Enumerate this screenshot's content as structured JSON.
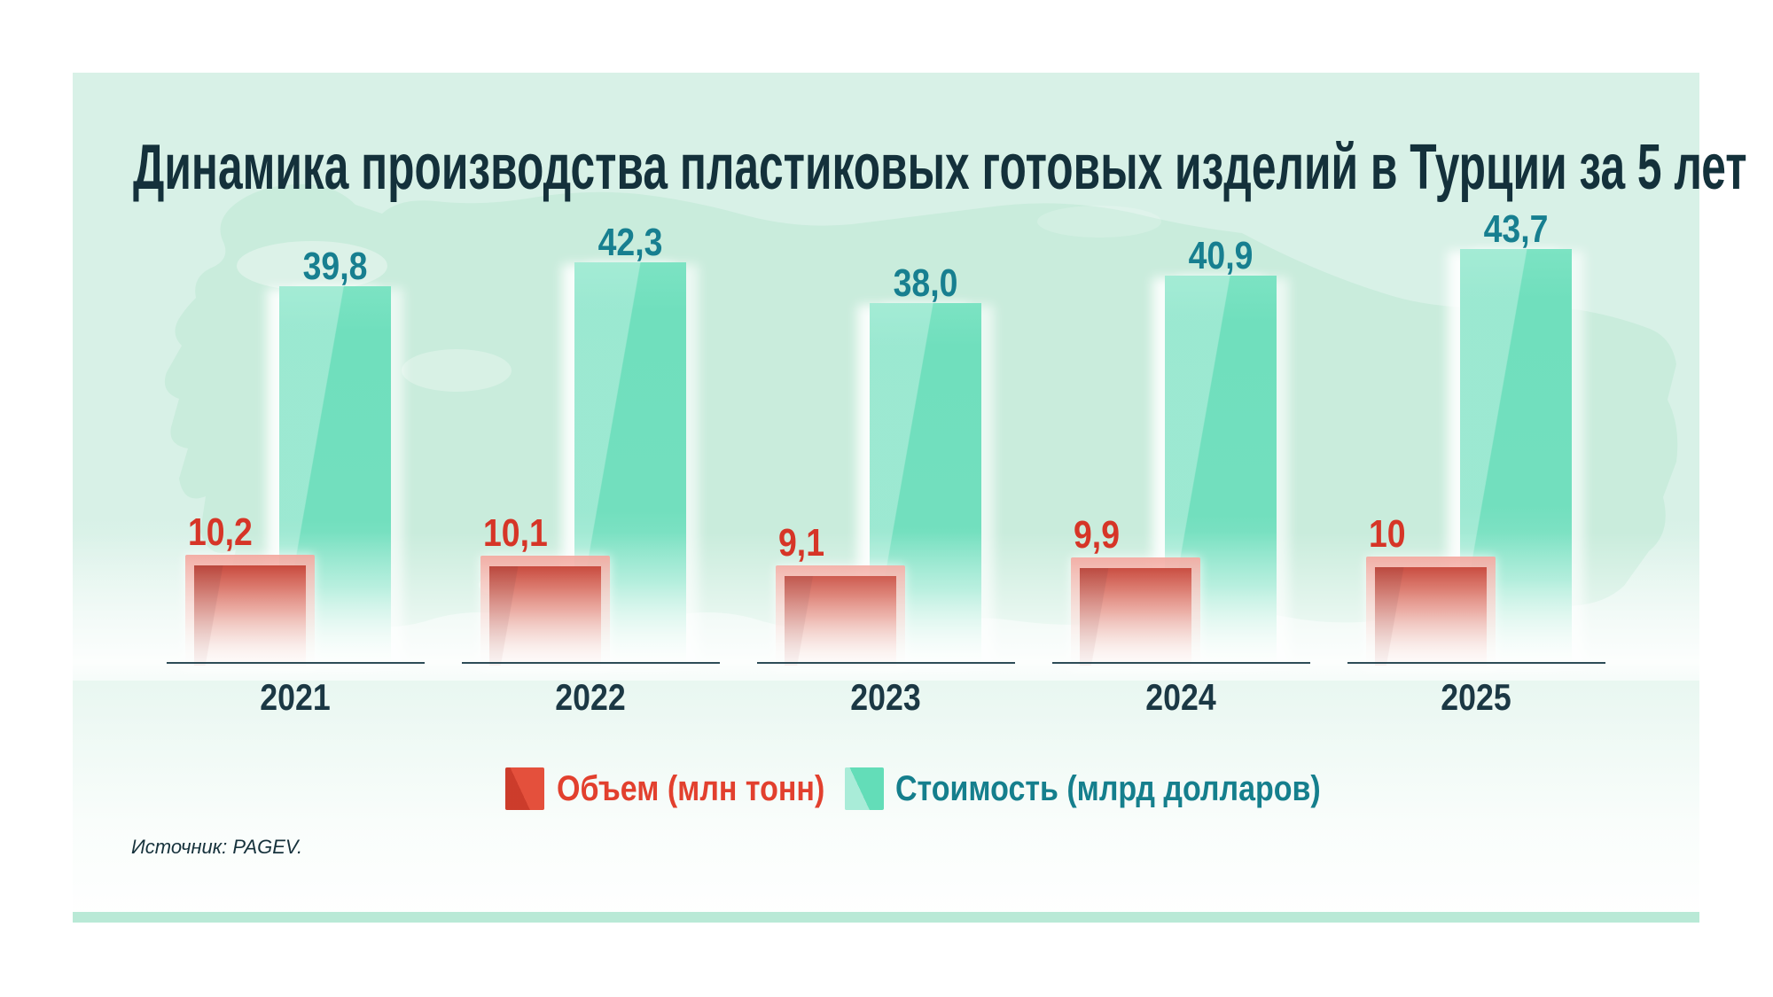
{
  "title": {
    "text": "Динамика производства пластиковых готовых изделий в Турции за 5 лет",
    "color": "#14313b"
  },
  "legend": {
    "items": [
      {
        "label": "Объем (млн тонн)",
        "text_color": "#e2402e",
        "swatch_color": "#e4503c"
      },
      {
        "label": "Стоимость (млрд долларов)",
        "text_color": "#157f8d",
        "swatch_color": "#63ddb8"
      }
    ]
  },
  "source": {
    "text": "Источник: PAGEV."
  },
  "colors": {
    "card_background": "#d8f1e7",
    "map_silhouette": "#c9ecdc",
    "bottom_strip": "#b9e9d6",
    "baseline": "#2d4c57",
    "year_label": "#1b3844",
    "volume_label": "#d63527",
    "value_label": "#177f90",
    "volume_bar": "#c62c19",
    "value_bar": "#6fdfbd"
  },
  "chart_data": {
    "type": "bar",
    "title": "Динамика производства пластиковых готовых изделий в Турции за 5 лет",
    "categories": [
      "2021",
      "2022",
      "2023",
      "2024",
      "2025"
    ],
    "series": [
      {
        "name": "Объем (млн тонн)",
        "values": [
          10.2,
          10.1,
          9.1,
          9.9,
          10
        ],
        "display": [
          "10,2",
          "10,1",
          "9,1",
          "9,9",
          "10"
        ],
        "color": "#c62c19"
      },
      {
        "name": "Стоимость (млрд долларов)",
        "values": [
          39.8,
          42.3,
          38.0,
          40.9,
          43.7
        ],
        "display": [
          "39,8",
          "42,3",
          "38,0",
          "40,9",
          "43,7"
        ],
        "color": "#6fdfbd"
      }
    ],
    "xlabel": "",
    "ylabel": "",
    "grid": false,
    "axis_ticks_shown": false,
    "legend_position": "bottom",
    "source": "Источник: PAGEV."
  }
}
